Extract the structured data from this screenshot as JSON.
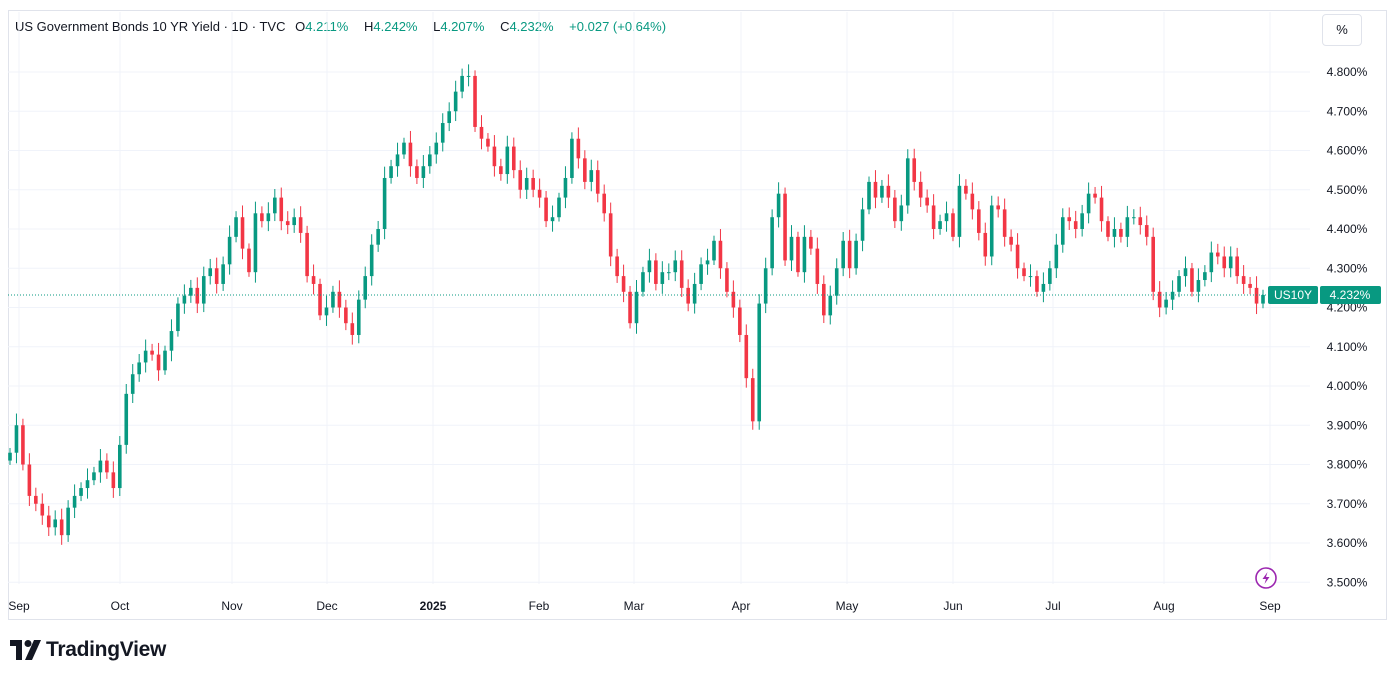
{
  "header": {
    "symbol_title": "US Government Bonds 10 YR Yield · 1D · TVC",
    "open_label": "O",
    "open": "4.211%",
    "high_label": "H",
    "high": "4.242%",
    "low_label": "L",
    "low": "4.207%",
    "close_label": "C",
    "close": "4.232%",
    "change": "+0.027 (+0.64%)"
  },
  "unit_button": "%",
  "price_tag": {
    "symbol": "US10Y",
    "value": "4.232%"
  },
  "brand": {
    "name": "TradingView"
  },
  "colors": {
    "up": "#089981",
    "down": "#f23645",
    "grid": "#f0f3fa",
    "axis_text": "#131722",
    "accent": "#9c27b0"
  },
  "icons": {
    "lightning": "lightning-icon",
    "brand_logo": "tradingview-logo-icon"
  },
  "chart_data": {
    "type": "candlestick",
    "title": "US Government Bonds 10 YR Yield · 1D · TVC",
    "ylim": [
      3.45,
      4.87
    ],
    "y_ticks": [
      "4.800%",
      "4.700%",
      "4.600%",
      "4.500%",
      "4.400%",
      "4.300%",
      "4.200%",
      "4.100%",
      "4.000%",
      "3.900%",
      "3.800%",
      "3.700%",
      "3.600%",
      "3.500%"
    ],
    "x_ticks": [
      "Sep",
      "Oct",
      "Nov",
      "Dec",
      "2025",
      "Feb",
      "Mar",
      "Apr",
      "May",
      "Jun",
      "Jul",
      "Aug",
      "Sep"
    ],
    "grid": true,
    "last_value": 4.232,
    "closes": [
      3.83,
      3.9,
      3.8,
      3.72,
      3.7,
      3.67,
      3.64,
      3.66,
      3.62,
      3.69,
      3.72,
      3.74,
      3.76,
      3.78,
      3.81,
      3.78,
      3.74,
      3.85,
      3.98,
      4.03,
      4.06,
      4.09,
      4.08,
      4.04,
      4.09,
      4.14,
      4.21,
      4.23,
      4.25,
      4.21,
      4.28,
      4.3,
      4.26,
      4.31,
      4.38,
      4.43,
      4.35,
      4.29,
      4.44,
      4.42,
      4.44,
      4.48,
      4.42,
      4.41,
      4.43,
      4.39,
      4.28,
      4.26,
      4.18,
      4.2,
      4.24,
      4.2,
      4.16,
      4.13,
      4.22,
      4.28,
      4.36,
      4.4,
      4.53,
      4.56,
      4.59,
      4.62,
      4.56,
      4.53,
      4.56,
      4.59,
      4.62,
      4.67,
      4.7,
      4.75,
      4.79,
      4.79,
      4.66,
      4.63,
      4.61,
      4.56,
      4.54,
      4.61,
      4.55,
      4.5,
      4.53,
      4.5,
      4.48,
      4.42,
      4.43,
      4.48,
      4.53,
      4.63,
      4.58,
      4.52,
      4.55,
      4.49,
      4.44,
      4.33,
      4.28,
      4.24,
      4.16,
      4.24,
      4.29,
      4.32,
      4.26,
      4.29,
      4.29,
      4.32,
      4.25,
      4.21,
      4.26,
      4.31,
      4.32,
      4.37,
      4.3,
      4.24,
      4.2,
      4.13,
      4.02,
      3.91,
      4.21,
      4.3,
      4.43,
      4.49,
      4.32,
      4.38,
      4.29,
      4.38,
      4.35,
      4.26,
      4.18,
      4.23,
      4.3,
      4.37,
      4.3,
      4.37,
      4.45,
      4.52,
      4.48,
      4.51,
      4.48,
      4.42,
      4.46,
      4.58,
      4.52,
      4.48,
      4.46,
      4.4,
      4.42,
      4.44,
      4.38,
      4.51,
      4.49,
      4.45,
      4.39,
      4.33,
      4.46,
      4.45,
      4.38,
      4.36,
      4.3,
      4.28,
      4.28,
      4.24,
      4.26,
      4.3,
      4.36,
      4.43,
      4.42,
      4.4,
      4.44,
      4.49,
      4.48,
      4.42,
      4.38,
      4.4,
      4.38,
      4.43,
      4.43,
      4.41,
      4.38,
      4.24,
      4.2,
      4.22,
      4.24,
      4.28,
      4.3,
      4.24,
      4.27,
      4.29,
      4.34,
      4.33,
      4.3,
      4.33,
      4.28,
      4.26,
      4.25,
      4.21,
      4.232
    ]
  }
}
